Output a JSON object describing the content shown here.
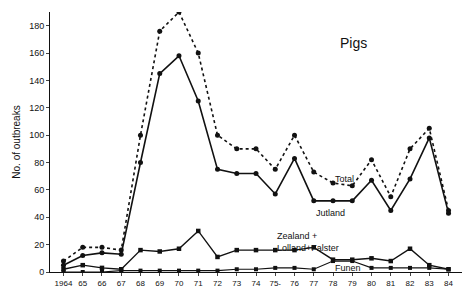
{
  "chart_data": {
    "type": "line",
    "title": "Pigs",
    "ylabel": "No. of outbreaks",
    "color": "#111111",
    "grid": false,
    "x": [
      1964,
      1965,
      1966,
      1967,
      1968,
      1969,
      1970,
      1971,
      1972,
      1973,
      1974,
      1975,
      1976,
      1977,
      1978,
      1979,
      1980,
      1981,
      1982,
      1983,
      1984
    ],
    "xlim": [
      1963.3,
      1984.7
    ],
    "xticks": [
      1964,
      {
        "value": 1965,
        "label": "65"
      },
      {
        "value": 1966,
        "label": "66"
      },
      {
        "value": 1967,
        "label": "67"
      },
      {
        "value": 1968,
        "label": "68"
      },
      {
        "value": 1969,
        "label": "69"
      },
      {
        "value": 1970,
        "label": "70"
      },
      {
        "value": 1971,
        "label": "71"
      },
      {
        "value": 1972,
        "label": "72"
      },
      {
        "value": 1973,
        "label": "73"
      },
      {
        "value": 1974,
        "label": "74"
      },
      {
        "value": 1975,
        "label": "75-"
      },
      {
        "value": 1976,
        "label": "76"
      },
      {
        "value": 1977,
        "label": "77"
      },
      {
        "value": 1978,
        "label": "78"
      },
      {
        "value": 1979,
        "label": "79"
      },
      {
        "value": 1980,
        "label": "80"
      },
      {
        "value": 1981,
        "label": "81"
      },
      {
        "value": 1982,
        "label": "82"
      },
      {
        "value": 1983,
        "label": "83"
      },
      {
        "value": 1984,
        "label": "84"
      }
    ],
    "ylim": [
      0,
      190
    ],
    "yticks": [
      0,
      20,
      40,
      60,
      80,
      100,
      120,
      140,
      160,
      180
    ],
    "series": [
      {
        "marker": "circle",
        "line_style": "dotted",
        "values": [
          8,
          18,
          18,
          16,
          100,
          176,
          190,
          160,
          100,
          90,
          90,
          75,
          100,
          73,
          65,
          63,
          82,
          55,
          90,
          105,
          45
        ]
      },
      {
        "marker": "circle",
        "line_style": "solid",
        "values": [
          5,
          12,
          14,
          13,
          80,
          145,
          158,
          125,
          75,
          72,
          72,
          57,
          83,
          52,
          52,
          52,
          67,
          45,
          68,
          98,
          43
        ]
      },
      {
        "marker": "square",
        "line_style": "solid",
        "values": [
          2,
          5,
          3,
          2,
          16,
          15,
          17,
          30,
          11,
          16,
          16,
          16,
          16,
          18,
          9,
          9,
          10,
          8,
          17,
          5,
          2
        ]
      },
      {
        "marker": "square",
        "line_style": "solid",
        "values": [
          0,
          0,
          0,
          1,
          1,
          1,
          1,
          1,
          1,
          2,
          2,
          3,
          3,
          2,
          8,
          8,
          3,
          3,
          3,
          3,
          2
        ]
      }
    ],
    "annotations": [
      {
        "text": "Total",
        "x": 1978,
        "y": 68
      },
      {
        "text": "Jutland",
        "x": 1977,
        "y": 43
      },
      {
        "text": "Zealand +\nLolland+Falster",
        "x": 1975,
        "y": 22
      },
      {
        "text": "Funen",
        "x": 1978,
        "y": 3
      }
    ]
  }
}
